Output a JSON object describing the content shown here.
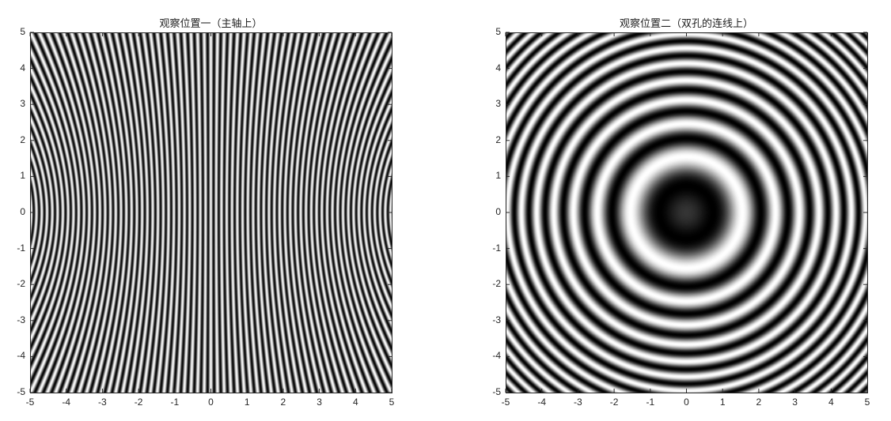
{
  "chart_data": [
    {
      "type": "heatmap",
      "title": "观察位置一（主轴上）",
      "colormap": "gray",
      "pattern": "hyperbolic-interference-fringes",
      "xlim": [
        -5,
        5
      ],
      "ylim": [
        -5,
        5
      ],
      "xticks": [
        "-5",
        "-4",
        "-3",
        "-2",
        "-1",
        "0",
        "1",
        "2",
        "3",
        "4",
        "5"
      ],
      "yticks": [
        "5",
        "4",
        "3",
        "2",
        "1",
        "0",
        "-1",
        "-2",
        "-3",
        "-4",
        "-5"
      ],
      "xlabel": "",
      "ylabel": ""
    },
    {
      "type": "heatmap",
      "title": "观察位置二（双孔的连线上）",
      "colormap": "gray",
      "pattern": "concentric-ring-fringes",
      "xlim": [
        -5,
        5
      ],
      "ylim": [
        -5,
        5
      ],
      "xticks": [
        "-5",
        "-4",
        "-3",
        "-2",
        "-1",
        "0",
        "1",
        "2",
        "3",
        "4",
        "5"
      ],
      "yticks": [
        "5",
        "4",
        "3",
        "2",
        "1",
        "0",
        "-1",
        "-2",
        "-3",
        "-4",
        "-5"
      ],
      "xlabel": "",
      "ylabel": ""
    }
  ]
}
